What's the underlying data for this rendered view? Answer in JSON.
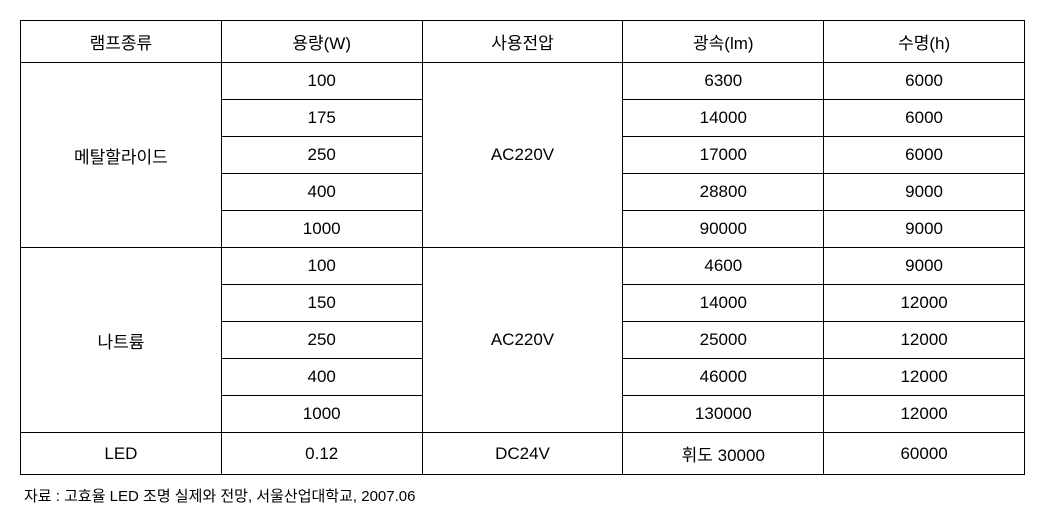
{
  "table": {
    "columns": [
      "램프종류",
      "용량(W)",
      "사용전압",
      "광속(lm)",
      "수명(h)"
    ],
    "groups": [
      {
        "lampType": "메탈할라이드",
        "voltage": "AC220V",
        "rows": [
          {
            "capacity": "100",
            "flux": "6300",
            "life": "6000"
          },
          {
            "capacity": "175",
            "flux": "14000",
            "life": "6000"
          },
          {
            "capacity": "250",
            "flux": "17000",
            "life": "6000"
          },
          {
            "capacity": "400",
            "flux": "28800",
            "life": "9000"
          },
          {
            "capacity": "1000",
            "flux": "90000",
            "life": "9000"
          }
        ]
      },
      {
        "lampType": "나트륨",
        "voltage": "AC220V",
        "rows": [
          {
            "capacity": "100",
            "flux": "4600",
            "life": "9000"
          },
          {
            "capacity": "150",
            "flux": "14000",
            "life": "12000"
          },
          {
            "capacity": "250",
            "flux": "25000",
            "life": "12000"
          },
          {
            "capacity": "400",
            "flux": "46000",
            "life": "12000"
          },
          {
            "capacity": "1000",
            "flux": "130000",
            "life": "12000"
          }
        ]
      }
    ],
    "singleRow": {
      "lampType": "LED",
      "capacity": "0.12",
      "voltage": "DC24V",
      "flux": "휘도 30000",
      "life": "60000"
    }
  },
  "source": "자료 : 고효율 LED 조명 실제와 전망, 서울산업대학교, 2007.06"
}
